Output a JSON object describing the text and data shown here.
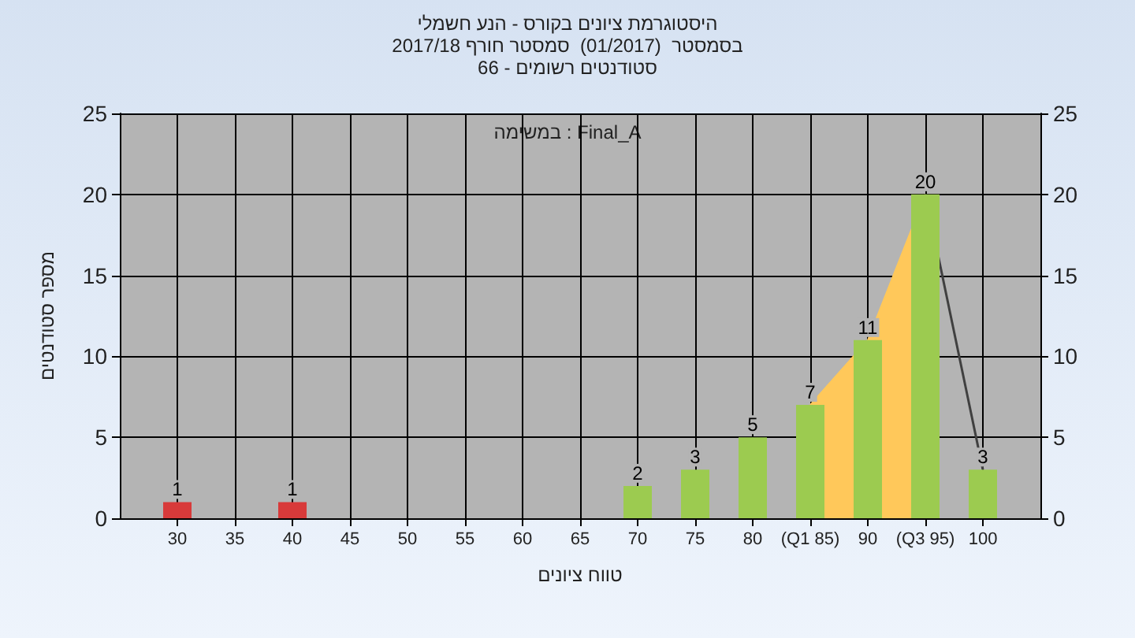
{
  "chart_data": {
    "type": "bar",
    "title": "היסטוגרמת ציונים בקורס - הנע חשמלי",
    "subtitle": "בסמסטר  (01/2017)  סמסטר חורף 2017/18\nסטודנטים רשומים - 66",
    "xlabel": "טווח ציונים",
    "ylabel": "מספר סטודנטים",
    "annotations": [
      "במשימה : Final_A"
    ],
    "x": [
      30,
      40,
      70,
      75,
      80,
      85,
      90,
      95,
      100
    ],
    "series": [
      {
        "type": "area",
        "x": [
          85,
          90,
          95
        ],
        "values": [
          7,
          11,
          20
        ],
        "color": "#ffc85a"
      },
      {
        "type": "line",
        "x": [
          95,
          100
        ],
        "values": [
          20,
          3
        ],
        "color": "#404040"
      },
      {
        "values": [
          1,
          1,
          2,
          3,
          5,
          7,
          11,
          20,
          3
        ],
        "value_labels": [
          "1",
          "1",
          "2",
          "3",
          "5",
          "7",
          "11",
          "20",
          "3"
        ],
        "colors": [
          "#d83a3a",
          "#d83a3a",
          "#9ccb50",
          "#9ccb50",
          "#9ccb50",
          "#9ccb50",
          "#9ccb50",
          "#9ccb50",
          "#9ccb50"
        ]
      }
    ],
    "xlim": [
      25,
      105
    ],
    "xticks": [
      30,
      35,
      40,
      45,
      50,
      55,
      60,
      65,
      70,
      75,
      80,
      {
        "value": 85,
        "label": "(Q1 85)"
      },
      90,
      {
        "value": 95,
        "label": "(Q3 95)"
      },
      100
    ],
    "ylim": [
      0,
      25
    ],
    "yticks": [
      0,
      5,
      10,
      15,
      20,
      25
    ],
    "y2lim": [
      0,
      25
    ],
    "y2ticks": [
      0,
      5,
      10,
      15,
      20,
      25
    ],
    "grid": true,
    "marker": "none"
  }
}
